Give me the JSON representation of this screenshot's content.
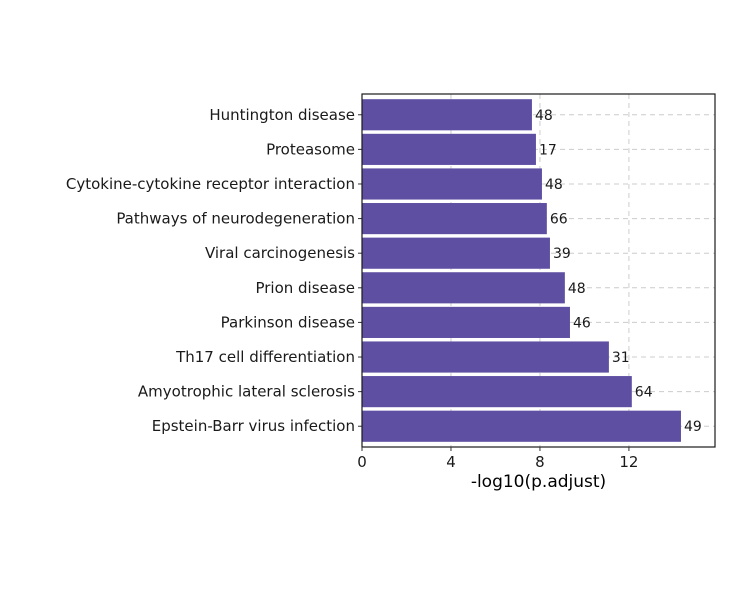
{
  "chart_data": {
    "type": "bar",
    "orientation": "horizontal",
    "title": "",
    "xlabel": "-log10(p.adjust)",
    "ylabel": "",
    "xlim": [
      0,
      15.87
    ],
    "xticks": [
      0,
      4,
      8,
      12
    ],
    "grid": true,
    "bar_color": "#5E4FA2",
    "categories": [
      "Huntington disease",
      "Proteasome",
      "Cytokine-cytokine receptor interaction",
      "Pathways of neurodegeneration",
      "Viral carcinogenesis",
      "Prion disease",
      "Parkinson disease",
      "Th17 cell differentiation",
      "Amyotrophic lateral sclerosis",
      "Epstein-Barr virus infection"
    ],
    "values": [
      7.64,
      7.82,
      8.09,
      8.31,
      8.45,
      9.12,
      9.35,
      11.1,
      12.13,
      14.34
    ],
    "labels": [
      "48",
      "17",
      "48",
      "66",
      "39",
      "48",
      "46",
      "31",
      "64",
      "49"
    ]
  }
}
